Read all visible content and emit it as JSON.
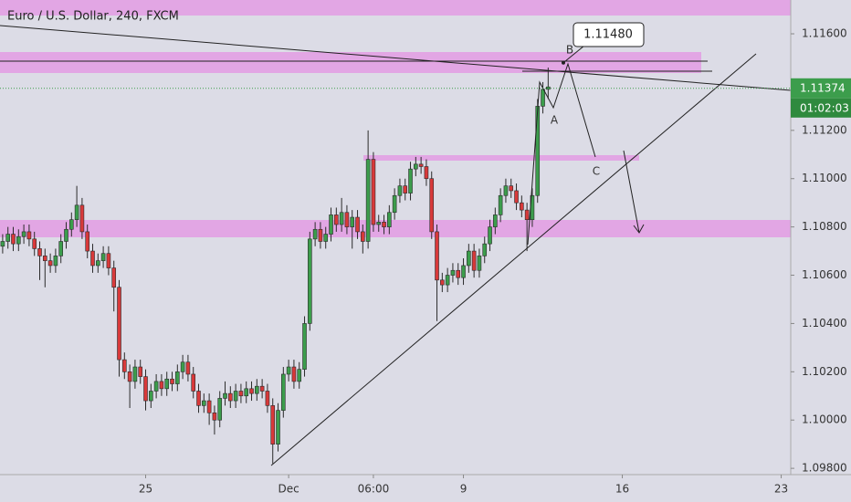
{
  "chart_data": {
    "type": "candlestick",
    "title": "Euro / U.S. Dollar, 240, FXCM",
    "up_color": "#3c9d4c",
    "down_color": "#d8393a",
    "xlim": [
      -0.5,
      148.8
    ],
    "xticks": [
      {
        "value": 27,
        "label": "25"
      },
      {
        "value": 54,
        "label": "Dec"
      },
      {
        "value": 70,
        "label": "06:00"
      },
      {
        "value": 87,
        "label": "9"
      },
      {
        "value": 117,
        "label": "16"
      },
      {
        "value": 147,
        "label": "23"
      }
    ],
    "ylim": [
      1.09774,
      1.1174
    ],
    "yticks": [
      {
        "value": 1.116,
        "label": "1.11600"
      },
      {
        "value": 1.112,
        "label": "1.11200"
      },
      {
        "value": 1.11,
        "label": "1.11000"
      },
      {
        "value": 1.108,
        "label": "1.10800"
      },
      {
        "value": 1.106,
        "label": "1.10600"
      },
      {
        "value": 1.104,
        "label": "1.10400"
      },
      {
        "value": 1.102,
        "label": "1.10200"
      },
      {
        "value": 1.1,
        "label": "1.10000"
      },
      {
        "value": 1.098,
        "label": "1.09800"
      }
    ],
    "last_price": {
      "value": 1.11374,
      "label": "1.11374"
    },
    "countdown": "01:02:03",
    "callout": {
      "value": 1.1148,
      "label": "1.11480"
    },
    "wave_labels": [
      "A",
      "B",
      "C"
    ],
    "x": [
      0,
      1,
      2,
      3,
      4,
      5,
      6,
      7,
      8,
      9,
      10,
      11,
      12,
      13,
      14,
      15,
      16,
      17,
      18,
      19,
      20,
      21,
      22,
      23,
      24,
      25,
      26,
      27,
      28,
      29,
      30,
      31,
      32,
      33,
      34,
      35,
      36,
      37,
      38,
      39,
      40,
      41,
      42,
      43,
      44,
      45,
      46,
      47,
      48,
      49,
      50,
      51,
      52,
      53,
      54,
      55,
      56,
      57,
      58,
      59,
      60,
      61,
      62,
      63,
      64,
      65,
      66,
      67,
      68,
      69,
      70,
      71,
      72,
      73,
      74,
      75,
      76,
      77,
      78,
      79,
      80,
      81,
      82,
      83,
      84,
      85,
      86,
      87,
      88,
      89,
      90,
      91,
      92,
      93,
      94,
      95,
      96,
      97,
      98,
      99,
      100,
      101,
      102,
      103
    ],
    "open": [
      1.1072,
      1.1074,
      1.1077,
      1.1073,
      1.1076,
      1.1078,
      1.1075,
      1.1071,
      1.1068,
      1.1066,
      1.1064,
      1.1068,
      1.1074,
      1.1079,
      1.1083,
      1.1089,
      1.1078,
      1.107,
      1.1064,
      1.1066,
      1.1069,
      1.1063,
      1.1055,
      1.1025,
      1.102,
      1.1016,
      1.1022,
      1.1018,
      1.1008,
      1.1012,
      1.1016,
      1.1013,
      1.1017,
      1.1015,
      1.102,
      1.1024,
      1.1019,
      1.1012,
      1.1006,
      1.1008,
      1.1003,
      1.1,
      1.1009,
      1.1011,
      1.1008,
      1.1012,
      1.101,
      1.1013,
      1.1011,
      1.1014,
      1.1012,
      1.1006,
      1.099,
      1.1004,
      1.1019,
      1.1022,
      1.1016,
      1.1021,
      1.104,
      1.1075,
      1.1079,
      1.1074,
      1.1077,
      1.1085,
      1.1081,
      1.1086,
      1.108,
      1.1084,
      1.1078,
      1.1074,
      1.1108,
      1.1081,
      1.1082,
      1.108,
      1.1086,
      1.1093,
      1.1097,
      1.1094,
      1.1104,
      1.1106,
      1.1105,
      1.11,
      1.1078,
      1.1058,
      1.1056,
      1.106,
      1.1062,
      1.1059,
      1.1064,
      1.107,
      1.1062,
      1.1068,
      1.1073,
      1.108,
      1.1085,
      1.1093,
      1.1097,
      1.1095,
      1.109,
      1.1087,
      1.1083,
      1.1093,
      1.113,
      1.1137
    ],
    "high": [
      1.1077,
      1.108,
      1.108,
      1.1079,
      1.1081,
      1.1081,
      1.1078,
      1.1074,
      1.1071,
      1.1069,
      1.1071,
      1.1077,
      1.1082,
      1.1086,
      1.1097,
      1.1092,
      1.1081,
      1.1073,
      1.1069,
      1.1072,
      1.1072,
      1.1066,
      1.1058,
      1.1028,
      1.1023,
      1.1025,
      1.1025,
      1.1021,
      1.1015,
      1.1019,
      1.1019,
      1.102,
      1.102,
      1.1023,
      1.1027,
      1.1027,
      1.1022,
      1.1015,
      1.1011,
      1.1011,
      1.1006,
      1.1012,
      1.1016,
      1.1014,
      1.1015,
      1.1015,
      1.1016,
      1.1016,
      1.1017,
      1.1017,
      1.1015,
      1.1009,
      1.1007,
      1.1022,
      1.1025,
      1.1025,
      1.1024,
      1.1043,
      1.1078,
      1.1082,
      1.1082,
      1.108,
      1.1088,
      1.1088,
      1.1092,
      1.1089,
      1.1087,
      1.1087,
      1.1081,
      1.112,
      1.1111,
      1.1085,
      1.1085,
      1.1089,
      1.1096,
      1.11,
      1.11,
      1.1107,
      1.1109,
      1.1109,
      1.1108,
      1.1103,
      1.1081,
      1.1061,
      1.1063,
      1.1065,
      1.1065,
      1.1067,
      1.1073,
      1.1073,
      1.1071,
      1.1076,
      1.1083,
      1.1088,
      1.1096,
      1.11,
      1.11,
      1.1098,
      1.1093,
      1.109,
      1.1096,
      1.1133,
      1.114,
      1.1146
    ],
    "low": [
      1.1069,
      1.1071,
      1.107,
      1.107,
      1.1073,
      1.1072,
      1.1068,
      1.1058,
      1.1055,
      1.1061,
      1.1061,
      1.1065,
      1.1071,
      1.1076,
      1.108,
      1.1075,
      1.1067,
      1.1061,
      1.1061,
      1.1063,
      1.106,
      1.1045,
      1.1018,
      1.1017,
      1.1005,
      1.1013,
      1.1015,
      1.1004,
      1.1005,
      1.1009,
      1.101,
      1.101,
      1.1012,
      1.1012,
      1.1017,
      1.1016,
      1.1009,
      1.1003,
      1.1003,
      1.0998,
      1.0994,
      1.0997,
      1.1006,
      1.1005,
      1.1005,
      1.1007,
      1.1007,
      1.1008,
      1.1008,
      1.1009,
      1.1003,
      1.0982,
      1.0987,
      1.1001,
      1.1016,
      1.1013,
      1.1013,
      1.1018,
      1.1037,
      1.1072,
      1.1071,
      1.1071,
      1.1074,
      1.1078,
      1.1078,
      1.1077,
      1.1071,
      1.1075,
      1.1069,
      1.1071,
      1.1078,
      1.1078,
      1.1077,
      1.1077,
      1.1083,
      1.109,
      1.1091,
      1.1091,
      1.1101,
      1.1102,
      1.1097,
      1.1075,
      1.1041,
      1.1053,
      1.1053,
      1.1057,
      1.1056,
      1.1056,
      1.1061,
      1.1059,
      1.1059,
      1.1065,
      1.107,
      1.1077,
      1.1082,
      1.109,
      1.1092,
      1.1087,
      1.1084,
      1.107,
      1.108,
      1.109,
      1.1127,
      1.1133
    ],
    "close": [
      1.1074,
      1.1077,
      1.1073,
      1.1076,
      1.1078,
      1.1075,
      1.1071,
      1.1068,
      1.1066,
      1.1064,
      1.1068,
      1.1074,
      1.1079,
      1.1083,
      1.1089,
      1.1078,
      1.107,
      1.1064,
      1.1066,
      1.1069,
      1.1063,
      1.1055,
      1.1025,
      1.102,
      1.1016,
      1.1022,
      1.1018,
      1.1008,
      1.1012,
      1.1016,
      1.1013,
      1.1017,
      1.1015,
      1.102,
      1.1024,
      1.1019,
      1.1012,
      1.1006,
      1.1008,
      1.1003,
      1.1,
      1.1009,
      1.1011,
      1.1008,
      1.1012,
      1.101,
      1.1013,
      1.1011,
      1.1014,
      1.1012,
      1.1006,
      1.099,
      1.1004,
      1.1019,
      1.1022,
      1.1016,
      1.1021,
      1.104,
      1.1075,
      1.1079,
      1.1074,
      1.1077,
      1.1085,
      1.1081,
      1.1086,
      1.108,
      1.1084,
      1.1078,
      1.1074,
      1.1108,
      1.1081,
      1.1082,
      1.108,
      1.1086,
      1.1093,
      1.1097,
      1.1094,
      1.1104,
      1.1106,
      1.1105,
      1.11,
      1.1078,
      1.1058,
      1.1056,
      1.106,
      1.1062,
      1.1059,
      1.1064,
      1.107,
      1.1062,
      1.1068,
      1.1073,
      1.108,
      1.1085,
      1.1093,
      1.1097,
      1.1095,
      1.109,
      1.1087,
      1.1083,
      1.1093,
      1.113,
      1.1137,
      1.1138
    ]
  }
}
